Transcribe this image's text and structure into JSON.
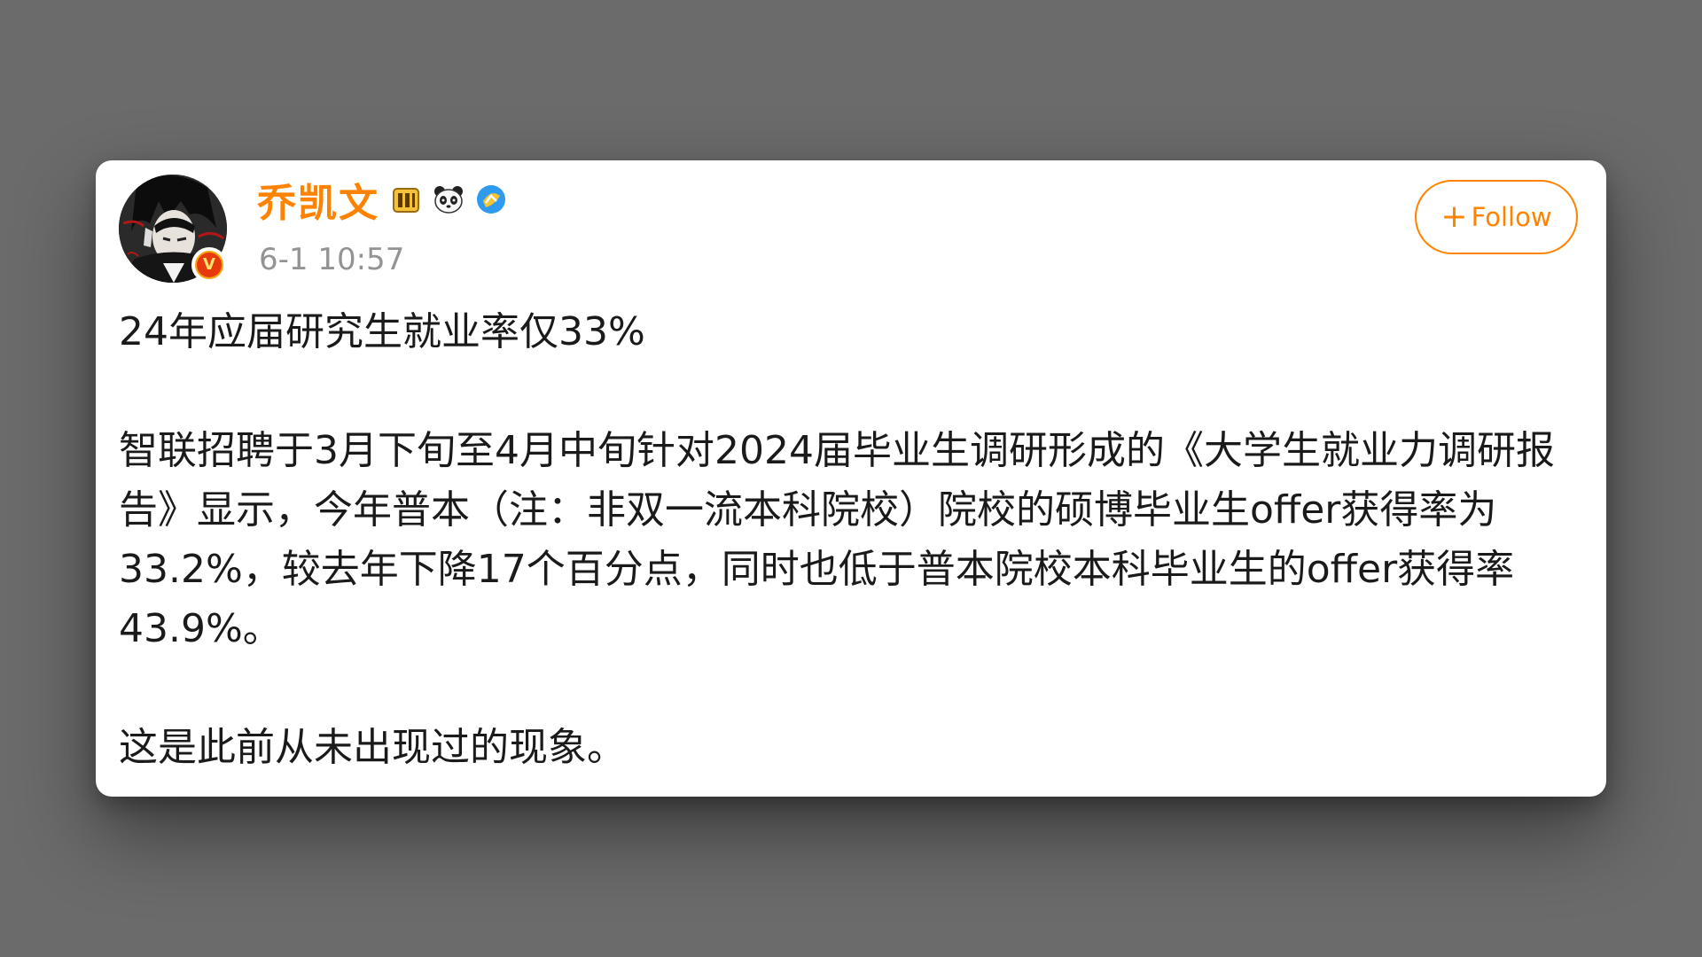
{
  "post": {
    "username": "乔凯文",
    "timestamp": "6-1 10:57",
    "follow_label": "Follow",
    "badges": [
      "vip-rank-icon",
      "panda-icon",
      "verified-blue-icon"
    ],
    "avatar_badge_letter": "V",
    "paragraphs": [
      "24年应届研究生就业率仅33%",
      "智联招聘于3月下旬至4月中旬针对2024届毕业生调研形成的《大学生就业力调研报告》显示，今年普本（注：非双一流本科院校）院校的硕博毕业生offer获得率为33.2%，较去年下降17个百分点，同时也低于普本院校本科毕业生的offer获得率43.9%。",
      "这是此前从未出现过的现象。"
    ]
  },
  "colors": {
    "background": "#6b6b6b",
    "card": "#ffffff",
    "accent_orange": "#ff8200",
    "timestamp_gray": "#939393",
    "text": "#1a1a1a"
  }
}
